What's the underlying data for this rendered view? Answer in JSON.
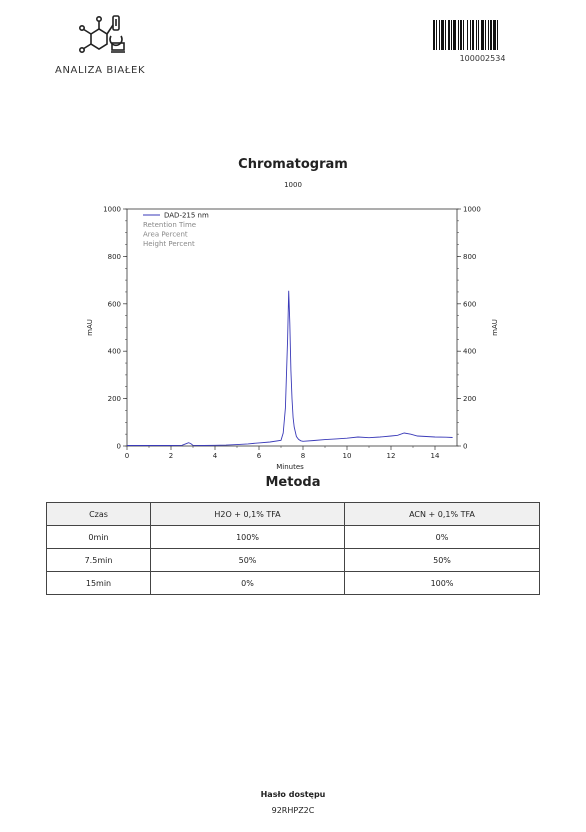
{
  "header": {
    "logo_text": "ANALIZA BIAŁEK",
    "barcode_number": "100002534"
  },
  "chart_title": "Chromatogram",
  "chart_subtitle": "1000",
  "chart_data": {
    "type": "line",
    "xlabel": "Minutes",
    "ylabel": "mAU",
    "xlim": [
      0,
      15
    ],
    "ylim": [
      0,
      1000
    ],
    "x_ticks": [
      0,
      2,
      4,
      6,
      8,
      10,
      12,
      14
    ],
    "y_ticks": [
      0,
      200,
      400,
      600,
      800,
      1000
    ],
    "legend_placement": "top-left",
    "legend": [
      "DAD-215 nm",
      "Retention Time",
      "Area Percent",
      "Height Percent"
    ],
    "series_color": "#3a3ab8",
    "series": [
      {
        "name": "DAD-215 nm",
        "x": [
          0,
          1.0,
          2.0,
          2.5,
          2.7,
          2.8,
          2.9,
          3.0,
          3.5,
          4.0,
          4.5,
          5.0,
          5.5,
          6.0,
          6.5,
          7.0,
          7.1,
          7.2,
          7.3,
          7.35,
          7.4,
          7.45,
          7.5,
          7.55,
          7.6,
          7.7,
          7.8,
          7.9,
          8.0,
          8.5,
          9.0,
          9.5,
          10.0,
          10.5,
          11.0,
          11.5,
          12.0,
          12.3,
          12.6,
          12.9,
          13.2,
          13.6,
          14.0,
          14.5,
          14.8
        ],
        "y": [
          2,
          2,
          2,
          3,
          10,
          14,
          10,
          3,
          2,
          3,
          4,
          6,
          9,
          13,
          17,
          24,
          55,
          160,
          450,
          655,
          520,
          320,
          200,
          120,
          80,
          40,
          28,
          22,
          20,
          23,
          27,
          30,
          33,
          38,
          35,
          38,
          42,
          45,
          55,
          50,
          42,
          40,
          38,
          37,
          36
        ]
      }
    ]
  },
  "method": {
    "title": "Metoda",
    "headers": [
      "Czas",
      "H2O + 0,1% TFA",
      "ACN + 0,1% TFA"
    ],
    "rows": [
      [
        "0min",
        "100%",
        "0%"
      ],
      [
        "7.5min",
        "50%",
        "50%"
      ],
      [
        "15min",
        "0%",
        "100%"
      ]
    ]
  },
  "footer": {
    "label": "Hasło dostępu",
    "value": "92RHPZ2C"
  }
}
